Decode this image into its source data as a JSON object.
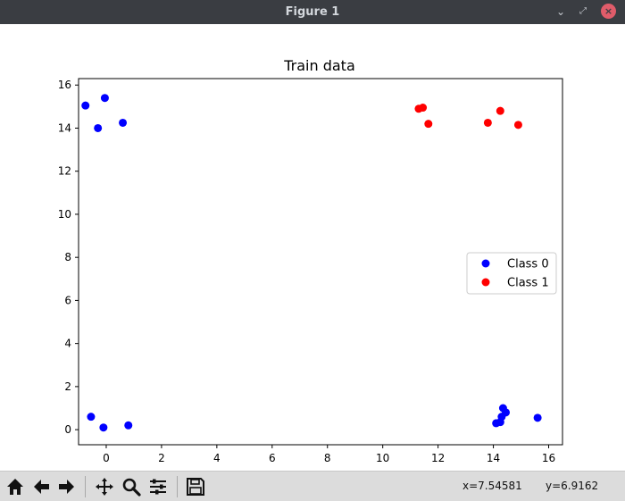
{
  "window": {
    "title": "Figure 1"
  },
  "toolbar": {
    "buttons": [
      {
        "name": "home-icon"
      },
      {
        "name": "back-icon"
      },
      {
        "name": "forward-icon"
      },
      {
        "name": "pan-icon"
      },
      {
        "name": "zoom-icon"
      },
      {
        "name": "configure-subplots-icon"
      },
      {
        "name": "save-icon"
      }
    ],
    "x_readout": "x=7.54581",
    "y_readout": "y=6.9162"
  },
  "chart_data": {
    "type": "scatter",
    "title": "Train data",
    "xlabel": "",
    "ylabel": "",
    "xlim": [
      -1.0,
      16.5
    ],
    "ylim": [
      -0.7,
      16.3
    ],
    "xticks": [
      0,
      2,
      4,
      6,
      8,
      10,
      12,
      14,
      16
    ],
    "yticks": [
      0,
      2,
      4,
      6,
      8,
      10,
      12,
      14,
      16
    ],
    "grid": false,
    "legend_position": "center-right",
    "series": [
      {
        "name": "Class 0",
        "color": "#0000ff",
        "points": [
          [
            -0.75,
            15.05
          ],
          [
            -0.05,
            15.4
          ],
          [
            -0.3,
            14.0
          ],
          [
            0.6,
            14.25
          ],
          [
            -0.55,
            0.6
          ],
          [
            -0.1,
            0.1
          ],
          [
            0.8,
            0.2
          ],
          [
            14.1,
            0.3
          ],
          [
            14.25,
            0.35
          ],
          [
            14.35,
            1.0
          ],
          [
            14.45,
            0.8
          ],
          [
            14.3,
            0.6
          ],
          [
            15.6,
            0.55
          ]
        ]
      },
      {
        "name": "Class 1",
        "color": "#ff0000",
        "points": [
          [
            11.3,
            14.9
          ],
          [
            11.45,
            14.95
          ],
          [
            11.65,
            14.2
          ],
          [
            13.8,
            14.25
          ],
          [
            14.25,
            14.8
          ],
          [
            14.9,
            14.15
          ]
        ]
      }
    ]
  }
}
